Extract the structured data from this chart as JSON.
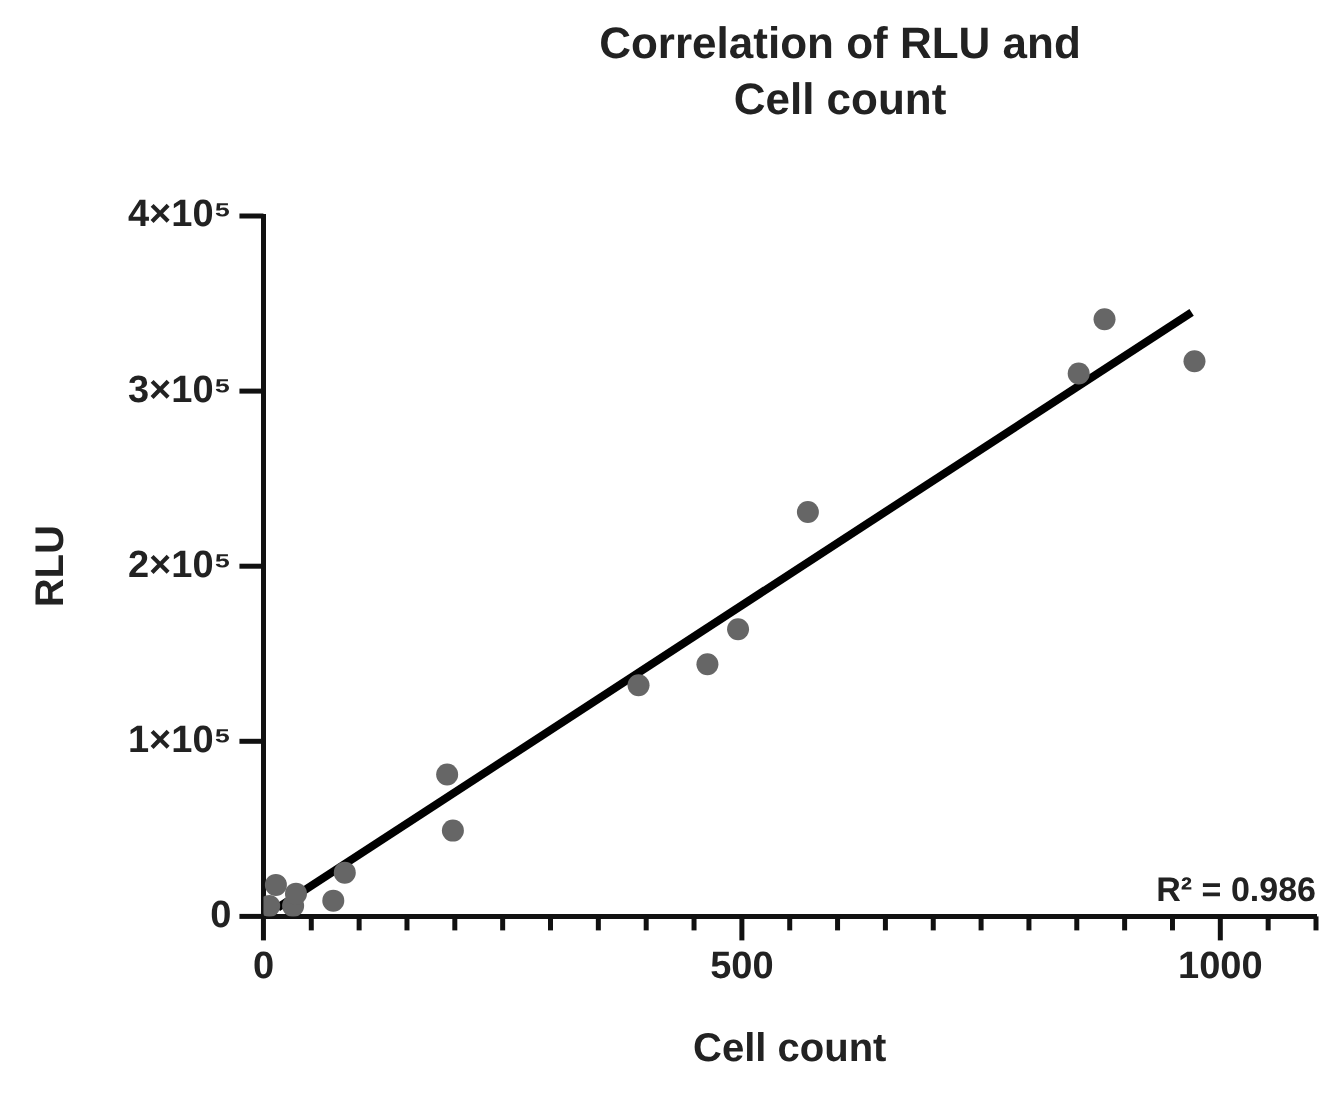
{
  "chart_data": {
    "type": "scatter",
    "title": "Correlation of RLU and Cell count",
    "xlabel": "Cell count",
    "ylabel": "RLU",
    "xlim": [
      0,
      1100
    ],
    "xticks": [
      0,
      {
        "value": 50,
        "label": null
      },
      {
        "value": 100,
        "label": null
      },
      {
        "value": 150,
        "label": null
      },
      {
        "value": 200,
        "label": null
      },
      {
        "value": 250,
        "label": null
      },
      {
        "value": 300,
        "label": null
      },
      {
        "value": 350,
        "label": null
      },
      {
        "value": 400,
        "label": null
      },
      {
        "value": 450,
        "label": null
      },
      500,
      {
        "value": 550,
        "label": null
      },
      {
        "value": 600,
        "label": null
      },
      {
        "value": 650,
        "label": null
      },
      {
        "value": 700,
        "label": null
      },
      {
        "value": 750,
        "label": null
      },
      {
        "value": 800,
        "label": null
      },
      {
        "value": 850,
        "label": null
      },
      {
        "value": 900,
        "label": null
      },
      {
        "value": 950,
        "label": null
      },
      1000,
      {
        "value": 1050,
        "label": null
      },
      {
        "value": 1100,
        "label": null
      }
    ],
    "ylim": [
      0,
      400000
    ],
    "yticks": [
      0,
      {
        "value": 100000,
        "label": "1×10⁵"
      },
      {
        "value": 200000,
        "label": "2×10⁵"
      },
      {
        "value": 300000,
        "label": "3×10⁵"
      },
      {
        "value": 400000,
        "label": "4×10⁵"
      }
    ],
    "grid": false,
    "legend": false,
    "marker": "circle",
    "series": [
      {
        "type": "scatter",
        "color": "#666666",
        "x": [
          6,
          13,
          31,
          34,
          73,
          85,
          192,
          198,
          392,
          464,
          496,
          569,
          852,
          879,
          973
        ],
        "values": [
          6000,
          18000,
          6000,
          13000,
          9000,
          25000,
          81000,
          49000,
          132000,
          144000,
          164000,
          231000,
          310000,
          341000,
          317000
        ]
      },
      {
        "type": "line",
        "color": "#000000",
        "marker": "none",
        "x": [
          15,
          970
        ],
        "values": [
          5000,
          345000
        ]
      }
    ],
    "annotations": [
      "R² = 0.986"
    ]
  }
}
